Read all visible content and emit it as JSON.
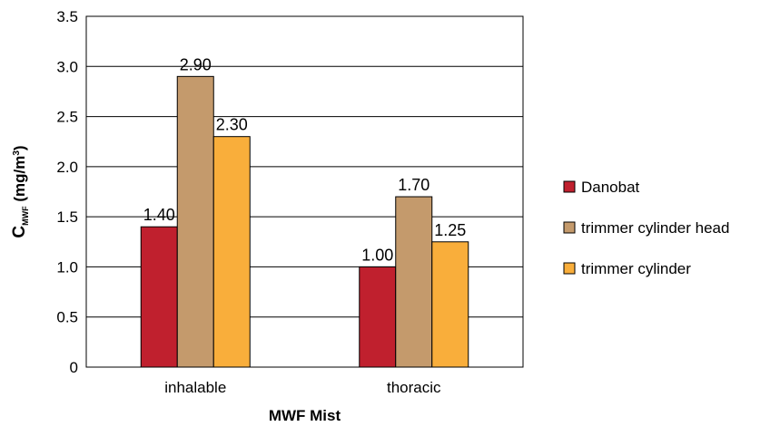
{
  "chart_data": {
    "type": "bar",
    "categories": [
      "inhalable",
      "thoracic"
    ],
    "series": [
      {
        "name": "Danobat",
        "values": [
          1.4,
          1.0
        ],
        "labels": [
          "1.40",
          "1.00"
        ],
        "color": "#C0202E"
      },
      {
        "name": "trimmer cylinder head",
        "values": [
          2.9,
          1.7
        ],
        "labels": [
          "2.90",
          "1.70"
        ],
        "color": "#C49A6C"
      },
      {
        "name": "trimmer cylinder",
        "values": [
          2.3,
          1.25
        ],
        "labels": [
          "2.30",
          "1.25"
        ],
        "color": "#F9AE3B"
      }
    ],
    "xlabel": "MWF Mist",
    "ylabel": {
      "main": "C",
      "sub": "MWF",
      "unit": " (mg/m",
      "sup": "3",
      "close": ")"
    },
    "ylim": [
      0,
      3.5
    ],
    "yticks": [
      "0",
      "0.5",
      "1.0",
      "1.5",
      "2.0",
      "2.5",
      "3.0",
      "3.5"
    ],
    "grid": true,
    "legend_position": "right"
  }
}
